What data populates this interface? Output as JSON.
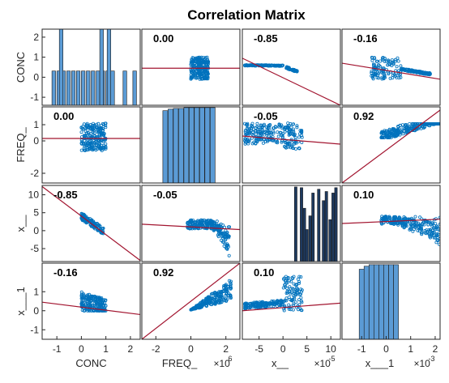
{
  "chart_data": {
    "type": "scatter",
    "title": "Correlation  Matrix",
    "variables": [
      "CONC",
      "FREQ_",
      "x__",
      "x___1"
    ],
    "xlabels": [
      {
        "label": "CONC",
        "multiplier": ""
      },
      {
        "label": "FREQ_",
        "multiplier": "×10",
        "multiplier_exp": "6"
      },
      {
        "label": "x__",
        "multiplier": "×10",
        "multiplier_exp": "-5"
      },
      {
        "label": "x___1",
        "multiplier": "×10",
        "multiplier_exp": "-3"
      }
    ],
    "ylabels": [
      "CONC",
      "FREQ_",
      "x__",
      "x___1"
    ],
    "x_ranges": [
      [
        -1.6,
        2.4
      ],
      [
        -2.8,
        2.8
      ],
      [
        -8.5,
        12
      ],
      [
        -1.8,
        2.2
      ]
    ],
    "x_ticks": [
      [
        -1,
        0,
        1,
        2
      ],
      [
        -2,
        0,
        2
      ],
      [
        -5,
        0,
        5,
        10
      ],
      [
        -1,
        0,
        1,
        2
      ]
    ],
    "y_ranges": [
      [
        -1.4,
        2.4
      ],
      [
        -2.6,
        2.1
      ],
      [
        -8.6,
        12.6
      ],
      [
        -1.5,
        2.5
      ]
    ],
    "y_ticks": [
      [
        -1,
        0,
        1,
        2
      ],
      [
        -2,
        0,
        1
      ],
      [
        -5,
        0,
        5,
        10
      ],
      [
        -1,
        0,
        1
      ]
    ],
    "correlations": [
      [
        "",
        "0.00",
        "-0.85",
        "-0.16"
      ],
      [
        "0.00",
        "",
        "-0.05",
        "0.92"
      ],
      [
        "-0.85",
        "-0.05",
        "",
        "0.10"
      ],
      [
        "-0.16",
        "0.92",
        "0.10",
        ""
      ]
    ],
    "histogram_bins": [
      [
        [
          -1.2,
          3
        ],
        [
          -1.0,
          3
        ],
        [
          -0.8,
          3
        ],
        [
          -0.6,
          3
        ],
        [
          -0.4,
          3
        ],
        [
          -0.2,
          3
        ],
        [
          0.0,
          3
        ],
        [
          0.2,
          3
        ],
        [
          0.4,
          3
        ],
        [
          0.6,
          3
        ],
        [
          0.8,
          3
        ],
        [
          1.0,
          3
        ],
        [
          1.2,
          3
        ],
        [
          -0.9,
          0
        ],
        [
          1.7,
          3
        ],
        [
          2.1,
          3
        ],
        [
          -0.9,
          7
        ],
        [
          0.75,
          7
        ],
        [
          1.05,
          7
        ]
      ],
      [
        [
          -1.8,
          1.0
        ],
        [
          -1.6,
          0.05
        ],
        [
          -1.3,
          0.03
        ],
        [
          -1.0,
          0.02
        ],
        [
          -0.7,
          0.02
        ],
        [
          -0.4,
          0.01
        ],
        [
          -0.1,
          0.01
        ],
        [
          0.2,
          0.01
        ],
        [
          0.5,
          0.01
        ],
        [
          0.8,
          0.01
        ],
        [
          1.1,
          0.01
        ]
      ],
      [
        [
          2.4,
          0.02
        ],
        [
          3.6,
          0.03
        ],
        [
          4.2,
          0.3
        ],
        [
          4.7,
          0.58
        ],
        [
          5.0,
          1.0
        ],
        [
          5.4,
          0.4
        ],
        [
          6.0,
          0.1
        ],
        [
          7.2,
          0.05
        ],
        [
          8.2,
          0.2
        ],
        [
          8.8,
          0.08
        ],
        [
          9.6,
          0.45
        ],
        [
          10.2,
          0.1
        ],
        [
          10.8,
          0.03
        ]
      ],
      [
        [
          -1.3,
          0.5
        ],
        [
          -1.1,
          0.04
        ],
        [
          -0.9,
          0.02
        ],
        [
          -0.7,
          0.01
        ],
        [
          -0.5,
          0.01
        ],
        [
          -0.3,
          0.01
        ],
        [
          -0.1,
          0.01
        ],
        [
          0.1,
          0.01
        ],
        [
          0.3,
          0.01
        ]
      ]
    ],
    "regression_lines": [
      [
        [
          0,
          1,
          0.45,
          0.45
        ]
      ],
      [
        [
          0,
          1,
          0.15,
          0.15
        ]
      ],
      [
        [
          -1.6,
          2.4,
          12.3,
          -8.3
        ]
      ],
      [
        [
          -1.8,
          2.2,
          0.35,
          0.05
        ]
      ]
    ],
    "colors": {
      "points": "#0072bd",
      "bars": "#5b9bd5",
      "bars_dark": "#1e3a5f",
      "line": "#a2142f",
      "frame": "#262626"
    }
  }
}
